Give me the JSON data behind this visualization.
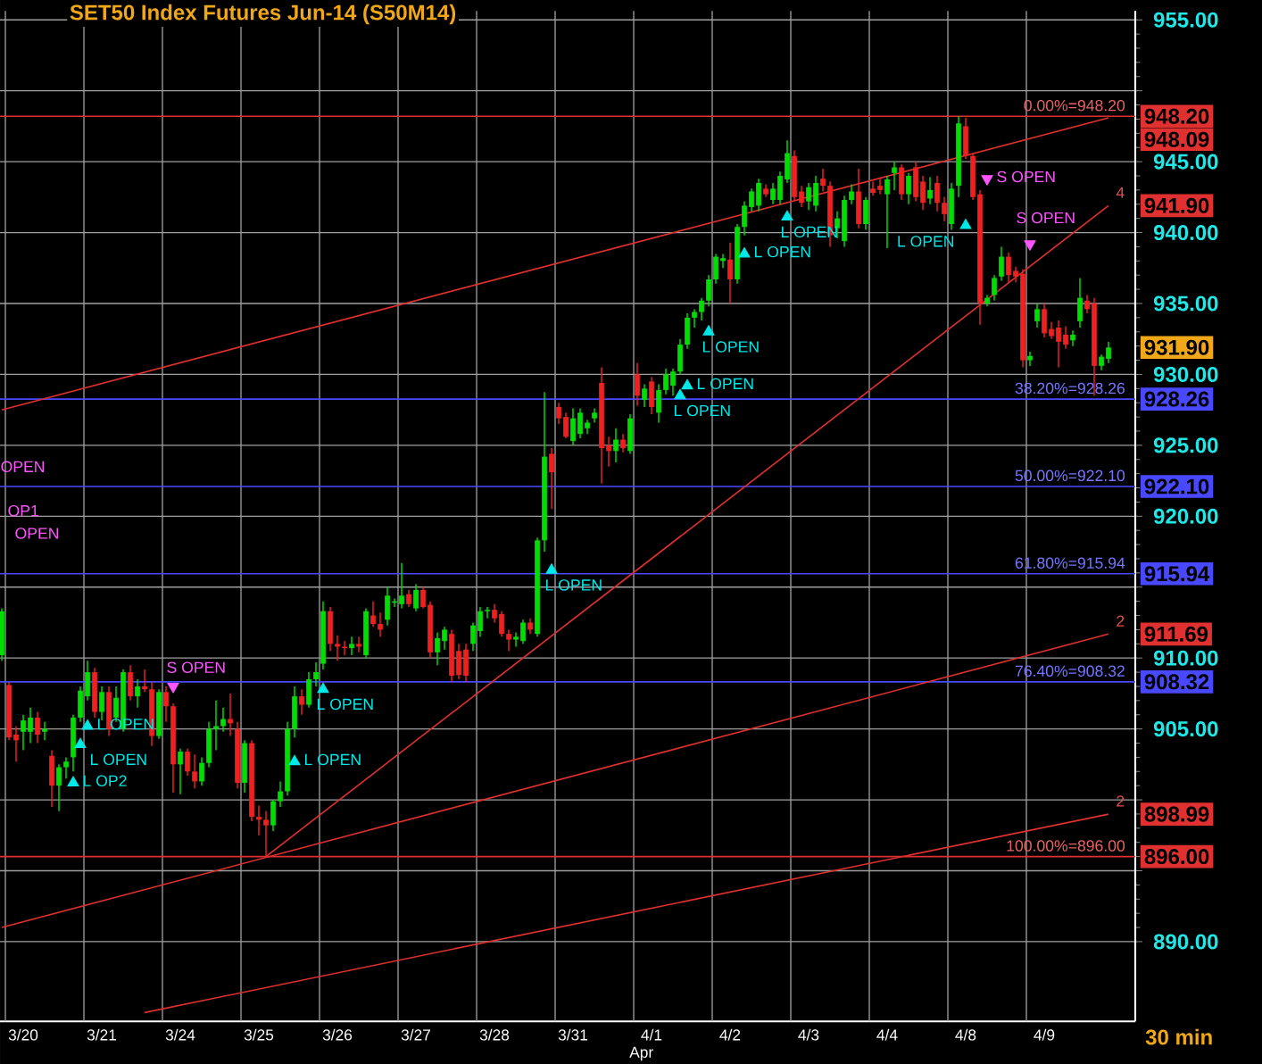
{
  "chart_data": {
    "type": "candlestick",
    "title": "SET50  Index  Futures  Jun-14  (S50M14)",
    "categories": [
      null,
      null,
      null,
      "3/20",
      null,
      null,
      null,
      null,
      null,
      null,
      null,
      null,
      null,
      null,
      "3/21",
      null,
      null,
      null,
      null,
      null,
      null,
      null,
      null,
      null,
      null,
      "3/24",
      null,
      null,
      null,
      null,
      null,
      null,
      null,
      null,
      null,
      null,
      "3/25",
      null,
      null,
      null,
      null,
      null,
      null,
      null,
      null,
      null,
      null,
      "3/26",
      null,
      null,
      null,
      null,
      null,
      null,
      null,
      null,
      null,
      null,
      "3/27",
      null,
      null,
      null,
      null,
      null,
      null,
      null,
      null,
      null,
      null,
      "3/28",
      null,
      null,
      null,
      null,
      null,
      null,
      null,
      null,
      null,
      null,
      "3/31",
      null,
      null,
      null,
      null,
      null,
      null,
      null,
      null,
      null,
      null,
      "4/1",
      null,
      null,
      null,
      null,
      null,
      null,
      null,
      null,
      null,
      null,
      "4/2",
      null,
      null,
      null,
      null,
      null,
      null,
      null,
      null,
      null,
      null,
      "4/3",
      null,
      null,
      null,
      null,
      null,
      null,
      null,
      null,
      null,
      null,
      "4/4",
      null,
      null,
      null,
      null,
      null,
      null,
      null,
      null,
      null,
      null,
      "4/8",
      null,
      null,
      null,
      null,
      null,
      null,
      null,
      null,
      null,
      null,
      "4/9",
      null,
      null,
      null,
      null,
      null,
      null,
      null,
      null,
      null
    ],
    "ohlc": [
      [
        910.2,
        913.5,
        909.8,
        913.3
      ],
      [
        908.1,
        908.3,
        904.2,
        904.4
      ],
      [
        904.6,
        905.2,
        902.7,
        904.2
      ],
      [
        904.8,
        906,
        903.5,
        905.6
      ],
      [
        904.8,
        906.5,
        904,
        905.8
      ],
      [
        905.8,
        906.2,
        904,
        904.6
      ],
      [
        904.8,
        905.5,
        904.2,
        905
      ],
      [
        903.1,
        903.5,
        899.5,
        901
      ],
      [
        901,
        902.5,
        899.2,
        902.3
      ],
      [
        902.3,
        903,
        901.5,
        902.7
      ],
      [
        903,
        906,
        902,
        905.8
      ],
      [
        905.8,
        908,
        905.5,
        907.7
      ],
      [
        907.3,
        909.8,
        907,
        909
      ],
      [
        909,
        909.3,
        905.8,
        906.2
      ],
      [
        906.2,
        908,
        905.6,
        907.6
      ],
      [
        907.6,
        908,
        904.5,
        905
      ],
      [
        905.8,
        908,
        905.5,
        907.2
      ],
      [
        905,
        909.2,
        904.8,
        909
      ],
      [
        909,
        909.5,
        907,
        907.3
      ],
      [
        907.3,
        908.5,
        906.5,
        908
      ],
      [
        908,
        909.2,
        907.6,
        907.8
      ],
      [
        907.8,
        908.3,
        903.8,
        904.5
      ],
      [
        904.5,
        907.8,
        904.3,
        907.6
      ],
      [
        907.6,
        908,
        905.5,
        906.6
      ],
      [
        906.6,
        906.8,
        900.5,
        902.5
      ],
      [
        902.5,
        903.6,
        900.4,
        903.4
      ],
      [
        903.4,
        903.6,
        901.7,
        902
      ],
      [
        902,
        903.2,
        900.8,
        901.3
      ],
      [
        901.3,
        903,
        901,
        902.6
      ],
      [
        902.6,
        905.5,
        902.3,
        905
      ],
      [
        905,
        907,
        903.5,
        905.2
      ],
      [
        905.2,
        906.5,
        904.8,
        905.7
      ],
      [
        905.7,
        907.5,
        904.5,
        905.4
      ],
      [
        905,
        905.5,
        900.8,
        901.2
      ],
      [
        901.2,
        904.2,
        900.5,
        904
      ],
      [
        904,
        904.2,
        898.5,
        898.8
      ],
      [
        898.8,
        899.6,
        897.5,
        898.6
      ],
      [
        898.6,
        899.2,
        896,
        898.2
      ],
      [
        898.2,
        900,
        897.8,
        899.9
      ],
      [
        899.9,
        901.3,
        899.5,
        900.6
      ],
      [
        900.6,
        905.5,
        900.3,
        905
      ],
      [
        905,
        908,
        904.4,
        907.3
      ],
      [
        907.3,
        907.8,
        906,
        906.7
      ],
      [
        906.7,
        909,
        906.5,
        908.5
      ],
      [
        908.5,
        909.7,
        908,
        909
      ],
      [
        909.6,
        914,
        909.2,
        913.3
      ],
      [
        913.3,
        913.6,
        910.5,
        911
      ],
      [
        911,
        911.6,
        909.8,
        910.8
      ],
      [
        910.8,
        911.2,
        910.2,
        910.7
      ],
      [
        910.7,
        911.5,
        910.2,
        911
      ],
      [
        911,
        911.5,
        910.4,
        910.8
      ],
      [
        910.2,
        913.5,
        910,
        913.3
      ],
      [
        913,
        914,
        912.2,
        912.4
      ],
      [
        912.4,
        913.2,
        911.5,
        912
      ],
      [
        912.7,
        915,
        912.3,
        914.4
      ],
      [
        913.9,
        914.2,
        913.6,
        914
      ],
      [
        913.8,
        916.7,
        913.5,
        914.4
      ],
      [
        914.5,
        914.8,
        913.6,
        913.8
      ],
      [
        913.5,
        915.2,
        913.3,
        914.8
      ],
      [
        914.8,
        915,
        913.5,
        913.6
      ],
      [
        913.75,
        914,
        910,
        910.4
      ],
      [
        910.4,
        911.8,
        909.5,
        911.4
      ],
      [
        911.2,
        912.2,
        910.6,
        912
      ],
      [
        911.7,
        912,
        908.3,
        908.75
      ],
      [
        910.5,
        911,
        908.5,
        908.8
      ],
      [
        910.6,
        911,
        908.3,
        908.75
      ],
      [
        911,
        912.5,
        910.5,
        912.3
      ],
      [
        911.9,
        913.6,
        911.5,
        913.3
      ],
      [
        913.3,
        913.6,
        912.8,
        913.4
      ],
      [
        913.4,
        913.8,
        912.5,
        912.8
      ],
      [
        913.1,
        913.3,
        911.5,
        911.7
      ],
      [
        911.7,
        912,
        910.5,
        911.3
      ],
      [
        911.3,
        911.8,
        910.8,
        911.5
      ],
      [
        911.2,
        912.7,
        911,
        912.5
      ],
      [
        912.5,
        912.8,
        911.7,
        912
      ],
      [
        911.7,
        918.5,
        911.5,
        918.3
      ],
      [
        918.3,
        928.75,
        917.5,
        924.2
      ],
      [
        924.4,
        924.8,
        920.5,
        923.1
      ],
      [
        927.7,
        928,
        926.5,
        926.9
      ],
      [
        927,
        927.3,
        925.5,
        925.6
      ],
      [
        925.3,
        927.6,
        925,
        926.9
      ],
      [
        925.8,
        927.6,
        925.5,
        927.3
      ],
      [
        926.2,
        926.8,
        925.8,
        926.6
      ],
      [
        926.9,
        927.6,
        926.6,
        927.3
      ],
      [
        929.4,
        930.5,
        922.3,
        924.8
      ],
      [
        925,
        925.6,
        923.5,
        924.6
      ],
      [
        924.6,
        926.2,
        923.8,
        925.4
      ],
      [
        925.4,
        925.8,
        924.5,
        924.8
      ],
      [
        924.6,
        927.2,
        924.4,
        926.9
      ],
      [
        930,
        930.8,
        927.8,
        928.5
      ],
      [
        928.2,
        929.3,
        927.7,
        929
      ],
      [
        929.5,
        929.8,
        927.2,
        927.7
      ],
      [
        927.3,
        929.3,
        926.6,
        928.9
      ],
      [
        928.9,
        930.4,
        928.6,
        930
      ],
      [
        929.2,
        930.4,
        928.5,
        930.2
      ],
      [
        930.2,
        932.5,
        930,
        932.1
      ],
      [
        932.1,
        934.3,
        931.8,
        934
      ],
      [
        934,
        934.6,
        933.3,
        934.4
      ],
      [
        934.4,
        935.4,
        933.8,
        935.2
      ],
      [
        935.2,
        937,
        934.8,
        936.7
      ],
      [
        936.7,
        938.5,
        936.4,
        938.3
      ],
      [
        938,
        938.5,
        937.5,
        938.2
      ],
      [
        938.1,
        939.3,
        935,
        936.7
      ],
      [
        936.7,
        940.6,
        936.4,
        940.4
      ],
      [
        940.4,
        942.2,
        939.8,
        941.9
      ],
      [
        941.8,
        943.1,
        941.5,
        942.9
      ],
      [
        941.9,
        943.8,
        941.5,
        943.5
      ],
      [
        943.1,
        943.4,
        942.5,
        942.7
      ],
      [
        942.3,
        943.5,
        942,
        943.1
      ],
      [
        942.3,
        944.3,
        942,
        944
      ],
      [
        943.75,
        946.5,
        943.5,
        945.6
      ],
      [
        945.4,
        945.8,
        942.2,
        942.5
      ],
      [
        942.9,
        943.3,
        941.8,
        942.1
      ],
      [
        942.2,
        943.5,
        941.6,
        943.2
      ],
      [
        941.9,
        944,
        941.5,
        943.5
      ],
      [
        943.8,
        944.5,
        942.9,
        943.3
      ],
      [
        943.3,
        943.6,
        939,
        939.8
      ],
      [
        940.3,
        941.5,
        939.6,
        941
      ],
      [
        939.4,
        942.6,
        939,
        942.3
      ],
      [
        942.3,
        943.4,
        942,
        942.9
      ],
      [
        942.9,
        944.5,
        940.3,
        940.6
      ],
      [
        940.6,
        942.5,
        940.2,
        942.3
      ],
      [
        943.1,
        943.6,
        942.6,
        942.8
      ],
      [
        943.3,
        943.8,
        942.7,
        943
      ],
      [
        942.7,
        944,
        938.9,
        943.75
      ],
      [
        944.2,
        945,
        943,
        944.6
      ],
      [
        944.6,
        944.8,
        942.3,
        942.7
      ],
      [
        942.7,
        944.2,
        942,
        944
      ],
      [
        944.6,
        945,
        942.2,
        942.5
      ],
      [
        943.6,
        944,
        941.6,
        942.1
      ],
      [
        942.4,
        943.9,
        942,
        943
      ],
      [
        943.5,
        944,
        941.5,
        942.1
      ],
      [
        942.1,
        942.5,
        940.8,
        941.3
      ],
      [
        940.6,
        943.5,
        940.2,
        943.1
      ],
      [
        943.3,
        948.2,
        942.5,
        947.7
      ],
      [
        947.5,
        948.1,
        945.2,
        945.4
      ],
      [
        945.4,
        945.6,
        942.3,
        942.5
      ],
      [
        942.7,
        943,
        933.5,
        935
      ],
      [
        935,
        935.6,
        934.8,
        935.4
      ],
      [
        935.6,
        937,
        935.2,
        936.8
      ],
      [
        936.9,
        939,
        936.6,
        938.3
      ],
      [
        938.3,
        938.6,
        936.5,
        937
      ],
      [
        937.3,
        937.6,
        936.5,
        936.9
      ],
      [
        937.1,
        937.4,
        930.5,
        931
      ],
      [
        931,
        931.6,
        930.6,
        931.3
      ],
      [
        933.75,
        935,
        933.3,
        934.6
      ],
      [
        934.6,
        935,
        932.6,
        932.9
      ],
      [
        933.2,
        933.7,
        932.5,
        932.7
      ],
      [
        933.3,
        933.8,
        930.5,
        932.3
      ],
      [
        932.8,
        933.4,
        931.8,
        932.1
      ],
      [
        932.4,
        933.1,
        932,
        932.8
      ],
      [
        933.75,
        936.8,
        933.3,
        935.4
      ],
      [
        935.2,
        935.6,
        934.3,
        934.6
      ],
      [
        935,
        935.4,
        928.5,
        930.6
      ],
      [
        930.6,
        931.4,
        930.3,
        931.25
      ],
      [
        931.1,
        932.3,
        930.8,
        931.9
      ]
    ],
    "colors": [
      "#00dd00",
      "#ee2020",
      "#ee2020",
      "#00dd00",
      "#00dd00",
      "#ee2020",
      "#00dd00",
      "#ee2020",
      "#00dd00",
      "#00dd00",
      "#00dd00",
      "#00dd00",
      "#00dd00",
      "#ee2020",
      "#00dd00",
      "#ee2020",
      "#00dd00",
      "#00dd00",
      "#ee2020",
      "#00dd00",
      "#ee2020",
      "#ee2020",
      "#00dd00",
      "#ee2020",
      "#ee2020",
      "#00dd00",
      "#ee2020",
      "#ee2020",
      "#00dd00",
      "#00dd00",
      "#00dd00",
      "#00dd00",
      "#ee2020",
      "#ee2020",
      "#00dd00",
      "#ee2020",
      "#ee2020",
      "#ee2020",
      "#00dd00",
      "#00dd00",
      "#00dd00",
      "#00dd00",
      "#ee2020",
      "#00dd00",
      "#00dd00",
      "#00dd00",
      "#ee2020",
      "#ee2020",
      "#ee2020",
      "#00dd00",
      "#ee2020",
      "#00dd00",
      "#ee2020",
      "#ee2020",
      "#00dd00",
      "#00dd00",
      "#00dd00",
      "#ee2020",
      "#00dd00",
      "#ee2020",
      "#ee2020",
      "#00dd00",
      "#00dd00",
      "#ee2020",
      "#ee2020",
      "#ee2020",
      "#00dd00",
      "#00dd00",
      "#00dd00",
      "#ee2020",
      "#ee2020",
      "#ee2020",
      "#00dd00",
      "#00dd00",
      "#ee2020",
      "#00dd00",
      "#00dd00",
      "#ee2020",
      "#ee2020",
      "#ee2020",
      "#00dd00",
      "#00dd00",
      "#00dd00",
      "#00dd00",
      "#ee2020",
      "#ee2020",
      "#00dd00",
      "#ee2020",
      "#00dd00",
      "#ee2020",
      "#00dd00",
      "#ee2020",
      "#00dd00",
      "#00dd00",
      "#00dd00",
      "#00dd00",
      "#00dd00",
      "#00dd00",
      "#00dd00",
      "#00dd00",
      "#00dd00",
      "#00dd00",
      "#ee2020",
      "#00dd00",
      "#00dd00",
      "#00dd00",
      "#00dd00",
      "#ee2020",
      "#00dd00",
      "#00dd00",
      "#00dd00",
      "#ee2020",
      "#ee2020",
      "#00dd00",
      "#00dd00",
      "#ee2020",
      "#ee2020",
      "#00dd00",
      "#00dd00",
      "#00dd00",
      "#ee2020",
      "#00dd00",
      "#ee2020",
      "#ee2020",
      "#00dd00",
      "#00dd00",
      "#ee2020",
      "#00dd00",
      "#ee2020",
      "#ee2020",
      "#00dd00",
      "#ee2020",
      "#ee2020",
      "#00dd00",
      "#00dd00",
      "#ee2020",
      "#ee2020",
      "#ee2020",
      "#00dd00",
      "#00dd00",
      "#00dd00",
      "#ee2020",
      "#ee2020",
      "#ee2020",
      "#00dd00",
      "#00dd00",
      "#ee2020",
      "#ee2020",
      "#ee2020",
      "#ee2020",
      "#00dd00",
      "#00dd00",
      "#ee2020",
      "#ee2020",
      "#00dd00",
      "#00dd00"
    ],
    "ylim": [
      884.375,
      955.625
    ],
    "yticks": [
      {
        "value": 955,
        "label": "955.00"
      },
      {
        "value": 950,
        "label": null
      },
      {
        "value": 945,
        "label": "945.00"
      },
      {
        "value": 940,
        "label": "940.00"
      },
      {
        "value": 935,
        "label": "935.00"
      },
      {
        "value": 930,
        "label": "930.00"
      },
      {
        "value": 925,
        "label": "925.00"
      },
      {
        "value": 920,
        "label": "920.00"
      },
      {
        "value": 915,
        "label": null
      },
      {
        "value": 910,
        "label": "910.00"
      },
      {
        "value": 905,
        "label": "905.00"
      },
      {
        "value": 900,
        "label": null
      },
      {
        "value": 895,
        "label": null
      },
      {
        "value": 890,
        "label": "890.00"
      }
    ],
    "grid": true,
    "series": [
      {
        "type": "line",
        "color": "#e03030",
        "values": [
          927.5,
          null,
          null,
          null,
          null,
          null,
          null,
          null,
          null,
          null,
          null,
          null,
          null,
          null,
          null,
          null,
          null,
          null,
          null,
          null,
          null,
          null,
          null,
          null,
          null,
          null,
          null,
          null,
          null,
          null,
          null,
          null,
          null,
          null,
          null,
          null,
          null,
          null,
          null,
          null,
          null,
          null,
          null,
          null,
          null,
          null,
          null,
          null,
          null,
          null,
          null,
          null,
          null,
          null,
          null,
          null,
          null,
          null,
          null,
          null,
          null,
          null,
          null,
          null,
          null,
          null,
          null,
          null,
          null,
          null,
          null,
          null,
          null,
          null,
          null,
          null,
          null,
          null,
          null,
          null,
          null,
          null,
          null,
          null,
          null,
          null,
          null,
          null,
          null,
          null,
          null,
          null,
          null,
          null,
          null,
          null,
          null,
          null,
          null,
          null,
          null,
          null,
          null,
          null,
          null,
          null,
          null,
          null,
          null,
          null,
          null,
          null,
          null,
          null,
          null,
          null,
          null,
          null,
          null,
          null,
          null,
          null,
          null,
          null,
          null,
          null,
          null,
          null,
          null,
          null,
          null,
          null,
          null,
          null,
          null,
          null,
          null,
          null,
          null,
          null,
          null,
          null,
          null,
          null,
          null,
          null,
          null,
          null,
          null,
          null,
          null,
          null,
          null,
          null,
          null,
          948.09
        ]
      },
      {
        "type": "line",
        "color": "#e03030",
        "name": "4",
        "values": [
          null,
          null,
          null,
          null,
          null,
          null,
          null,
          null,
          null,
          null,
          null,
          null,
          null,
          null,
          null,
          null,
          null,
          null,
          null,
          null,
          null,
          null,
          null,
          null,
          null,
          null,
          null,
          null,
          null,
          null,
          null,
          null,
          null,
          null,
          null,
          null,
          null,
          896.0,
          null,
          null,
          null,
          null,
          null,
          null,
          null,
          null,
          null,
          null,
          null,
          null,
          null,
          null,
          null,
          null,
          null,
          null,
          null,
          null,
          null,
          null,
          null,
          null,
          null,
          null,
          null,
          null,
          null,
          null,
          null,
          null,
          null,
          null,
          null,
          null,
          null,
          null,
          null,
          null,
          null,
          null,
          null,
          null,
          null,
          null,
          null,
          null,
          null,
          null,
          null,
          null,
          null,
          null,
          null,
          null,
          null,
          null,
          null,
          null,
          null,
          null,
          null,
          null,
          null,
          null,
          null,
          null,
          null,
          null,
          null,
          null,
          null,
          null,
          null,
          null,
          null,
          null,
          null,
          null,
          null,
          null,
          null,
          null,
          null,
          null,
          null,
          null,
          null,
          null,
          null,
          null,
          null,
          null,
          null,
          null,
          null,
          null,
          null,
          null,
          null,
          null,
          null,
          null,
          null,
          null,
          null,
          null,
          null,
          null,
          null,
          null,
          null,
          null,
          null,
          null,
          null,
          941.9
        ]
      },
      {
        "type": "line",
        "color": "#e03030",
        "name": "2",
        "values": [
          891.0,
          null,
          null,
          null,
          null,
          null,
          null,
          null,
          null,
          null,
          null,
          null,
          null,
          null,
          null,
          null,
          null,
          null,
          null,
          null,
          null,
          null,
          null,
          null,
          null,
          null,
          null,
          null,
          null,
          null,
          null,
          null,
          null,
          null,
          null,
          null,
          null,
          null,
          null,
          null,
          null,
          null,
          null,
          null,
          null,
          null,
          null,
          null,
          null,
          null,
          null,
          null,
          null,
          null,
          null,
          null,
          null,
          null,
          null,
          null,
          null,
          null,
          null,
          null,
          null,
          null,
          null,
          null,
          null,
          null,
          null,
          null,
          null,
          null,
          null,
          null,
          null,
          null,
          null,
          null,
          null,
          null,
          null,
          null,
          null,
          null,
          null,
          null,
          null,
          null,
          null,
          null,
          null,
          null,
          null,
          null,
          null,
          null,
          null,
          null,
          null,
          null,
          null,
          null,
          null,
          null,
          null,
          null,
          null,
          null,
          null,
          null,
          null,
          null,
          null,
          null,
          null,
          null,
          null,
          null,
          null,
          null,
          null,
          null,
          null,
          null,
          null,
          null,
          null,
          null,
          null,
          null,
          null,
          null,
          null,
          null,
          null,
          null,
          null,
          null,
          null,
          null,
          null,
          null,
          null,
          null,
          null,
          null,
          null,
          null,
          null,
          null,
          null,
          null,
          null,
          911.69
        ]
      },
      {
        "type": "line",
        "color": "#e03030",
        "name": "2",
        "values": [
          null,
          null,
          null,
          null,
          null,
          null,
          null,
          null,
          null,
          null,
          null,
          null,
          null,
          null,
          null,
          null,
          null,
          null,
          null,
          null,
          885.0,
          null,
          null,
          null,
          null,
          null,
          null,
          null,
          null,
          null,
          null,
          null,
          null,
          null,
          null,
          null,
          null,
          null,
          null,
          null,
          null,
          null,
          null,
          null,
          null,
          null,
          null,
          null,
          null,
          null,
          null,
          null,
          null,
          null,
          null,
          null,
          null,
          null,
          null,
          null,
          null,
          null,
          null,
          null,
          null,
          null,
          null,
          null,
          null,
          null,
          null,
          null,
          null,
          null,
          null,
          null,
          null,
          null,
          null,
          null,
          null,
          null,
          null,
          null,
          null,
          null,
          null,
          null,
          null,
          null,
          null,
          null,
          null,
          null,
          null,
          null,
          null,
          null,
          null,
          null,
          null,
          null,
          null,
          null,
          null,
          null,
          null,
          null,
          null,
          null,
          null,
          null,
          null,
          null,
          null,
          null,
          null,
          null,
          null,
          null,
          null,
          null,
          null,
          null,
          null,
          null,
          null,
          null,
          null,
          null,
          null,
          null,
          null,
          null,
          null,
          null,
          null,
          null,
          null,
          null,
          null,
          null,
          null,
          null,
          null,
          null,
          null,
          null,
          null,
          null,
          null,
          null,
          null,
          null,
          null,
          898.99
        ]
      },
      {
        "type": "scatter",
        "color": "#00e8e8",
        "marker": "triangle",
        "values": [
          null,
          null,
          null,
          null,
          null,
          null,
          null,
          null,
          null,
          null,
          901.2,
          903.9,
          905.2,
          null,
          null,
          null,
          null,
          null,
          null,
          null,
          null,
          null,
          null,
          null,
          null,
          null,
          null,
          null,
          null,
          null,
          null,
          null,
          null,
          null,
          null,
          null,
          null,
          null,
          null,
          null,
          null,
          902.7,
          null,
          null,
          null,
          907.8,
          null,
          null,
          null,
          null,
          null,
          null,
          null,
          null,
          null,
          null,
          null,
          null,
          null,
          null,
          null,
          null,
          null,
          null,
          null,
          null,
          null,
          null,
          null,
          null,
          null,
          null,
          null,
          null,
          null,
          null,
          null,
          916.2,
          null,
          null,
          null,
          null,
          null,
          null,
          null,
          null,
          null,
          null,
          null,
          null,
          null,
          null,
          null,
          null,
          null,
          928.5,
          929.2,
          null,
          null,
          933.0,
          null,
          null,
          null,
          null,
          938.5,
          null,
          null,
          null,
          null,
          null,
          941.1,
          null,
          null,
          null,
          null,
          null,
          null,
          null,
          null,
          null,
          null,
          null,
          null,
          null,
          null,
          null,
          null,
          null,
          null,
          null,
          null,
          null,
          null,
          null,
          null,
          940.5,
          null,
          null,
          null,
          null,
          null,
          null,
          null,
          null,
          null,
          null,
          null,
          null,
          null,
          null,
          null,
          null,
          null,
          null,
          null,
          null
        ],
        "value_labels": [
          null,
          null,
          null,
          null,
          null,
          null,
          null,
          null,
          null,
          null,
          "L OP2",
          "L OPEN",
          "L OPEN",
          null,
          null,
          null,
          null,
          null,
          null,
          null,
          null,
          null,
          null,
          null,
          null,
          null,
          null,
          null,
          null,
          null,
          null,
          null,
          null,
          null,
          null,
          null,
          null,
          null,
          null,
          null,
          null,
          "L OPEN",
          null,
          null,
          null,
          "L OPEN",
          null,
          null,
          null,
          null,
          null,
          null,
          null,
          null,
          null,
          null,
          null,
          null,
          null,
          null,
          null,
          null,
          null,
          null,
          null,
          null,
          null,
          null,
          null,
          null,
          null,
          null,
          null,
          null,
          null,
          null,
          null,
          "L OPEN",
          null,
          null,
          null,
          null,
          null,
          null,
          null,
          null,
          null,
          null,
          null,
          null,
          null,
          null,
          null,
          null,
          null,
          "L OPEN",
          "L OPEN",
          null,
          null,
          "L OPEN",
          null,
          null,
          null,
          null,
          "L OPEN",
          null,
          null,
          null,
          null,
          null,
          "L OPEN",
          null,
          null,
          null,
          null,
          null,
          null,
          null,
          null,
          null,
          null,
          null,
          null,
          null,
          null,
          null,
          null,
          null,
          null,
          null,
          null,
          null,
          null,
          null,
          null,
          "L OPEN",
          null,
          null,
          null,
          null,
          null,
          null,
          null,
          null,
          null,
          null,
          null,
          null,
          null,
          null,
          null,
          null,
          null,
          null,
          null,
          null
        ]
      },
      {
        "type": "scatter",
        "color": "#ff55ff",
        "marker": "triangle",
        "values": [
          null,
          null,
          null,
          null,
          null,
          null,
          null,
          null,
          null,
          null,
          null,
          null,
          null,
          null,
          null,
          null,
          null,
          null,
          null,
          null,
          null,
          null,
          null,
          null,
          908.0,
          null,
          null,
          null,
          null,
          null,
          null,
          null,
          null,
          null,
          null,
          null,
          null,
          null,
          null,
          null,
          null,
          null,
          null,
          null,
          null,
          null,
          null,
          null,
          null,
          null,
          null,
          null,
          null,
          null,
          null,
          null,
          null,
          null,
          null,
          null,
          null,
          null,
          null,
          null,
          null,
          null,
          null,
          null,
          null,
          null,
          null,
          null,
          null,
          null,
          null,
          null,
          null,
          null,
          null,
          null,
          null,
          null,
          null,
          null,
          null,
          null,
          null,
          null,
          null,
          null,
          null,
          null,
          null,
          null,
          null,
          null,
          null,
          null,
          null,
          null,
          null,
          null,
          null,
          null,
          null,
          null,
          null,
          null,
          null,
          null,
          null,
          null,
          null,
          null,
          null,
          null,
          null,
          null,
          null,
          null,
          null,
          null,
          null,
          null,
          null,
          null,
          null,
          null,
          null,
          null,
          null,
          null,
          null,
          null,
          null,
          null,
          null,
          null,
          943.8,
          null,
          null,
          null,
          null,
          null,
          939.2,
          null,
          null,
          null,
          null,
          null,
          null,
          null,
          null,
          null,
          null,
          null
        ],
        "value_labels": [
          null,
          null,
          null,
          null,
          null,
          null,
          null,
          null,
          null,
          null,
          null,
          null,
          null,
          null,
          null,
          null,
          null,
          null,
          null,
          null,
          null,
          null,
          null,
          null,
          "S OPEN",
          null,
          null,
          null,
          null,
          null,
          null,
          null,
          null,
          null,
          null,
          null,
          null,
          null,
          null,
          null,
          null,
          null,
          null,
          null,
          null,
          null,
          null,
          null,
          null,
          null,
          null,
          null,
          null,
          null,
          null,
          null,
          null,
          null,
          null,
          null,
          null,
          null,
          null,
          null,
          null,
          null,
          null,
          null,
          null,
          null,
          null,
          null,
          null,
          null,
          null,
          null,
          null,
          null,
          null,
          null,
          null,
          null,
          null,
          null,
          null,
          null,
          null,
          null,
          null,
          null,
          null,
          null,
          null,
          null,
          null,
          null,
          null,
          null,
          null,
          null,
          null,
          null,
          null,
          null,
          null,
          null,
          null,
          null,
          null,
          null,
          null,
          null,
          null,
          null,
          null,
          null,
          null,
          null,
          null,
          null,
          null,
          null,
          null,
          null,
          null,
          null,
          null,
          null,
          null,
          null,
          null,
          null,
          null,
          null,
          null,
          null,
          null,
          null,
          "S OPEN",
          null,
          null,
          null,
          null,
          null,
          "S OPEN",
          null,
          null,
          null,
          null,
          null,
          null,
          null,
          null,
          null,
          null,
          null
        ]
      }
    ],
    "ref_lines": [
      {
        "axis": "y",
        "value": 948.2,
        "label": "0.00%=948.20",
        "color": "#e03030"
      },
      {
        "axis": "y",
        "value": 928.26,
        "label": "38.20%=928.26",
        "color": "#4848ff"
      },
      {
        "axis": "y",
        "value": 922.1,
        "label": "50.00%=922.10",
        "color": "#4848ff"
      },
      {
        "axis": "y",
        "value": 915.94,
        "label": "61.80%=915.94",
        "color": "#4848ff"
      },
      {
        "axis": "y",
        "value": 908.32,
        "label": "76.40%=908.32",
        "color": "#4848ff"
      },
      {
        "axis": "y",
        "value": 896.0,
        "label": "100.00%=896.00",
        "color": "#e03030"
      }
    ],
    "annotations": [
      "OPEN",
      "OP1",
      "OPEN",
      "Apr",
      "948.20",
      "948.09",
      "941.90",
      "931.90",
      "928.26",
      "922.10",
      "915.94",
      "911.69",
      "908.32",
      "898.99",
      "896.00",
      "30  min"
    ]
  }
}
